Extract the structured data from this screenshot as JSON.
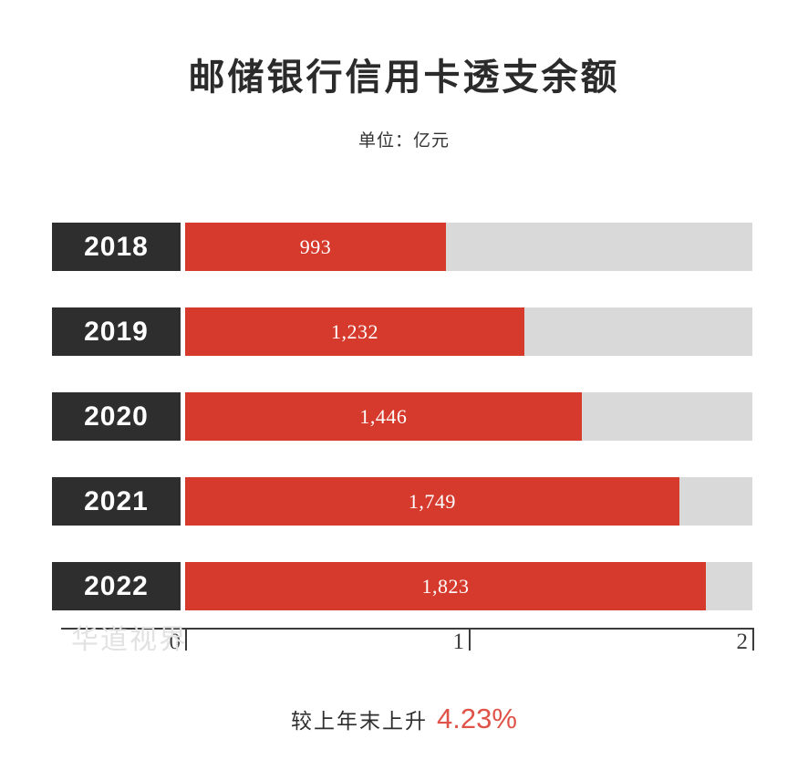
{
  "page": {
    "title": "邮储银行信用卡透支余额",
    "unit_label": "单位：亿元",
    "watermark": "华道视界",
    "footer_prefix": "较上年末上升",
    "footer_percent": "4.23%"
  },
  "chart_data": {
    "type": "bar",
    "orientation": "horizontal",
    "title": "邮储银行信用卡透支余额",
    "unit": "亿元",
    "categories": [
      "2018",
      "2019",
      "2020",
      "2021",
      "2022"
    ],
    "values": [
      993,
      1232,
      1446,
      1749,
      1823
    ],
    "value_labels": [
      "993",
      "1,232",
      "1,446",
      "1,749",
      "1,823"
    ],
    "xlim": [
      0,
      2000
    ],
    "x_tick_values": [
      0,
      1000,
      2000
    ],
    "x_tick_labels": [
      "0",
      "1",
      "2"
    ],
    "grid": false,
    "legend": false,
    "bar_fractions": [
      0.46,
      0.598,
      0.699,
      0.871,
      0.918
    ],
    "change_note": "较上年末上升 4.23%"
  },
  "colors": {
    "bar_fill": "#d53a2d",
    "bar_track": "#d9d9d9",
    "year_box_bg": "#2e2e2e",
    "year_text": "#ffffff",
    "value_text": "#ffffff",
    "title_text": "#2b2b2b",
    "axis": "#3c3c3c",
    "percent_accent": "#e05348",
    "watermark_text": "#e2e2e2"
  }
}
